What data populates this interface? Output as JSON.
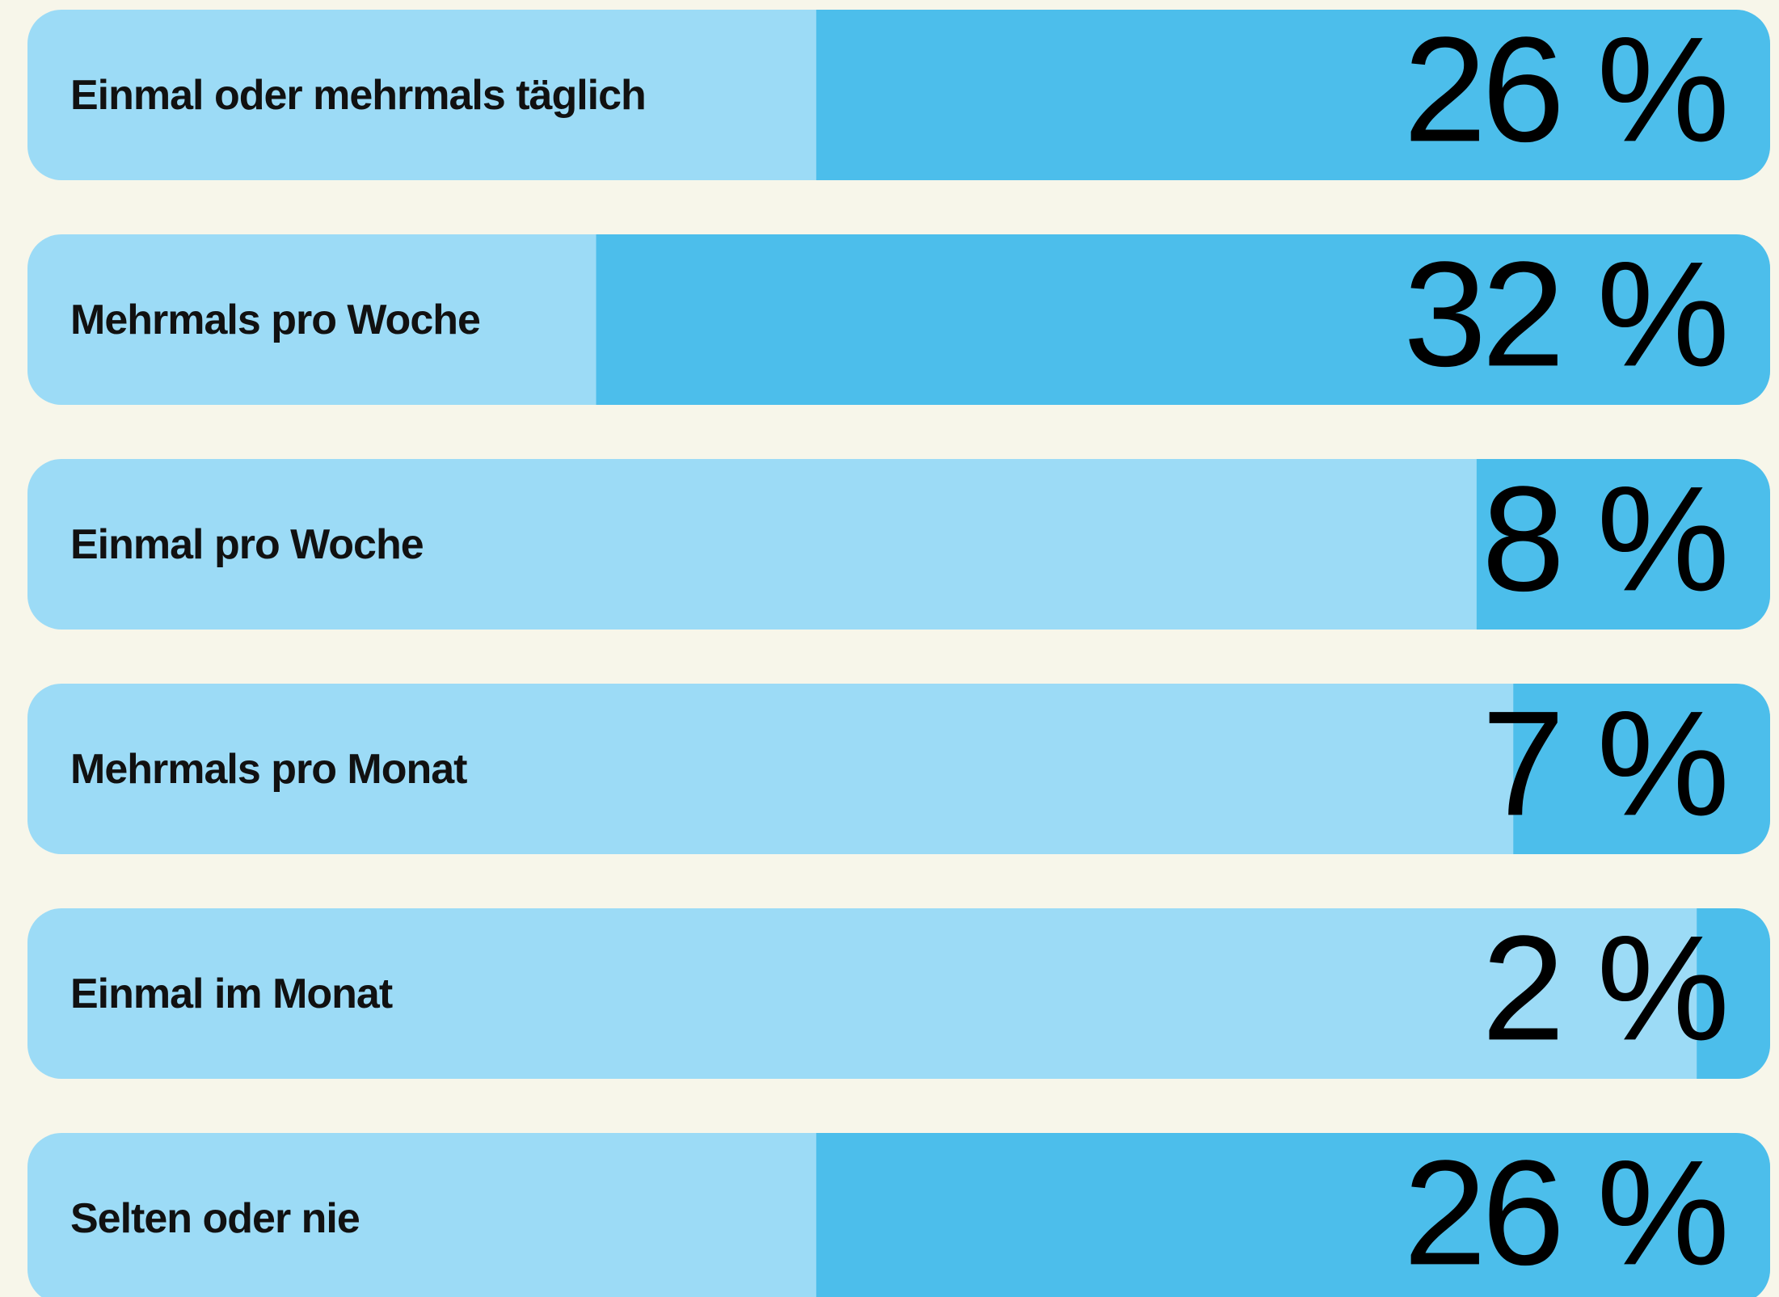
{
  "chart_data": {
    "type": "bar",
    "categories": [
      "Einmal oder mehrmals täglich",
      "Mehrmals pro Woche",
      "Einmal pro Woche",
      "Mehrmals pro Monat",
      "Einmal im Monat",
      "Selten oder nie"
    ],
    "values": [
      26,
      32,
      8,
      7,
      2,
      26
    ],
    "value_labels": [
      "26 %",
      "32 %",
      "8 %",
      "7 %",
      "2 %",
      "26 %"
    ],
    "color": "#4cbeeb",
    "track_color": "#9cdbf6",
    "background": "#f7f6ea",
    "xlim": [
      0,
      47.5
    ]
  }
}
